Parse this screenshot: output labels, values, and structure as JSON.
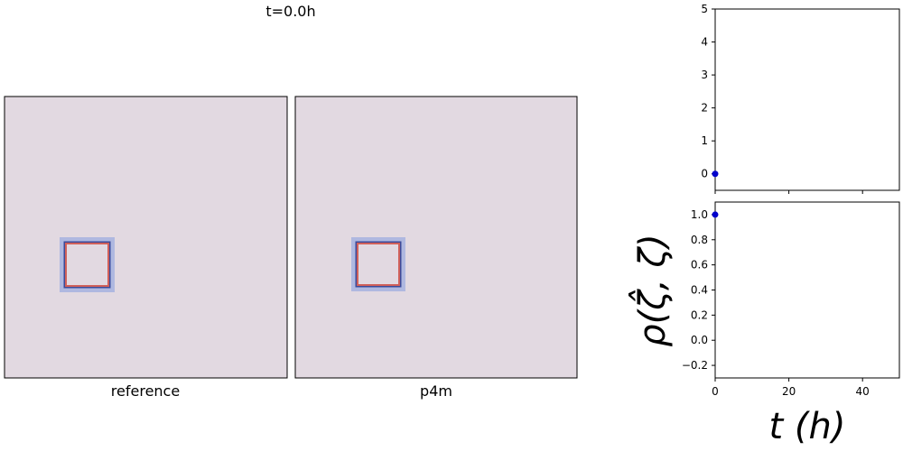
{
  "title": "t=0.0h",
  "colors": {
    "field_background": "#e2d9e1",
    "square_outline": "#d0605a",
    "square_edge_dark": "#3b4a9a",
    "square_edge_light": "#9aaae0",
    "marker": "#0000cc"
  },
  "chart_data": [
    {
      "type": "heatmap",
      "xlabel": "reference",
      "description_ticks": "no axis ticks",
      "grid": false
    },
    {
      "type": "heatmap",
      "xlabel": "p4m",
      "grid": false
    },
    {
      "type": "scatter",
      "xlim": [
        0,
        50
      ],
      "ylim": [
        -0.5,
        5
      ],
      "yticks": [
        0,
        1,
        2,
        3,
        4,
        5
      ],
      "xticks": [
        0,
        20,
        40
      ],
      "show_xtick_labels": false,
      "points": [
        {
          "x": 0,
          "y": 0
        }
      ],
      "marker_color": "#0000cc",
      "grid": false
    },
    {
      "type": "scatter",
      "xlim": [
        0,
        50
      ],
      "ylim": [
        -0.3,
        1.1
      ],
      "yticks": [
        -0.2,
        0.0,
        0.2,
        0.4,
        0.6,
        0.8,
        1.0
      ],
      "ytick_labels": [
        "−0.2",
        "0.0",
        "0.2",
        "0.4",
        "0.6",
        "0.8",
        "1.0"
      ],
      "xticks": [
        0,
        20,
        40
      ],
      "xtick_labels": [
        "0",
        "20",
        "40"
      ],
      "points": [
        {
          "x": 0,
          "y": 1.0
        }
      ],
      "marker_color": "#0000cc",
      "ylabel": "ρ(ζ̂, ζ)",
      "xlabel": "t (h)",
      "grid": false
    }
  ]
}
